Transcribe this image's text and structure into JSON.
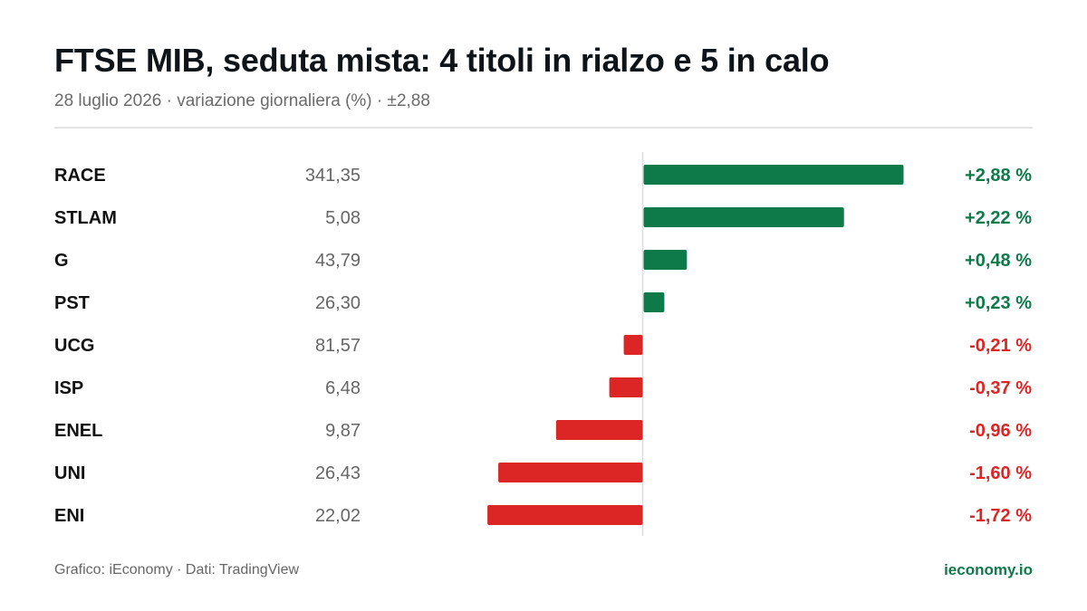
{
  "header": {
    "title": "FTSE MIB, seduta mista: 4 titoli in rialzo e 5 in calo",
    "subtitle": "28 luglio 2026 · variazione giornaliera (%) · ±2,88"
  },
  "colors": {
    "positive": "#0e7a4a",
    "negative": "#dc2626",
    "axis": "#dcdcdc",
    "ticker": "#111111",
    "price": "#666666"
  },
  "chart_data": {
    "type": "bar",
    "orientation": "horizontal",
    "xlim": [
      -2.88,
      2.88
    ],
    "grid": false,
    "legend": "none",
    "rows": [
      {
        "ticker": "RACE",
        "price": "341,35",
        "value": 2.88,
        "label": "+2,88 %"
      },
      {
        "ticker": "STLAM",
        "price": "5,08",
        "value": 2.22,
        "label": "+2,22 %"
      },
      {
        "ticker": "G",
        "price": "43,79",
        "value": 0.48,
        "label": "+0,48 %"
      },
      {
        "ticker": "PST",
        "price": "26,30",
        "value": 0.23,
        "label": "+0,23 %"
      },
      {
        "ticker": "UCG",
        "price": "81,57",
        "value": -0.21,
        "label": "-0,21 %"
      },
      {
        "ticker": "ISP",
        "price": "6,48",
        "value": -0.37,
        "label": "-0,37 %"
      },
      {
        "ticker": "ENEL",
        "price": "9,87",
        "value": -0.96,
        "label": "-0,96 %"
      },
      {
        "ticker": "UNI",
        "price": "26,43",
        "value": -1.6,
        "label": "-1,60 %"
      },
      {
        "ticker": "ENI",
        "price": "22,02",
        "value": -1.72,
        "label": "-1,72 %"
      }
    ]
  },
  "footer": {
    "credit": "Grafico: iEconomy · Dati: TradingView",
    "brand": "ieconomy.io"
  }
}
